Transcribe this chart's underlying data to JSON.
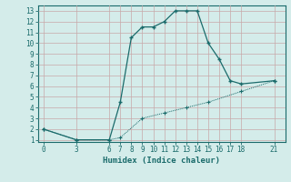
{
  "xlabel": "Humidex (Indice chaleur)",
  "bg_color": "#d4ecea",
  "line_color": "#1a6b6b",
  "grid_color": "#b8d8d8",
  "line1_x": [
    0,
    3,
    6,
    7,
    8,
    9,
    10,
    11,
    12,
    13,
    14,
    15,
    16,
    17,
    18,
    21
  ],
  "line1_y": [
    2,
    1,
    1,
    4.5,
    10.5,
    11.5,
    11.5,
    12,
    13,
    13,
    13,
    10,
    8.5,
    6.5,
    6.2,
    6.5
  ],
  "line2_x": [
    0,
    3,
    6,
    7,
    9,
    11,
    13,
    15,
    18,
    21
  ],
  "line2_y": [
    2,
    1,
    1,
    1.2,
    3,
    3.5,
    4,
    4.5,
    5.5,
    6.5
  ],
  "xticks": [
    0,
    3,
    6,
    7,
    8,
    9,
    10,
    11,
    12,
    13,
    14,
    15,
    16,
    17,
    18,
    21
  ],
  "yticks": [
    1,
    2,
    3,
    4,
    5,
    6,
    7,
    8,
    9,
    10,
    11,
    12,
    13
  ],
  "xlim": [
    -0.5,
    22
  ],
  "ylim": [
    0.8,
    13.5
  ],
  "xlabel_fontsize": 6.5,
  "tick_fontsize": 5.5
}
